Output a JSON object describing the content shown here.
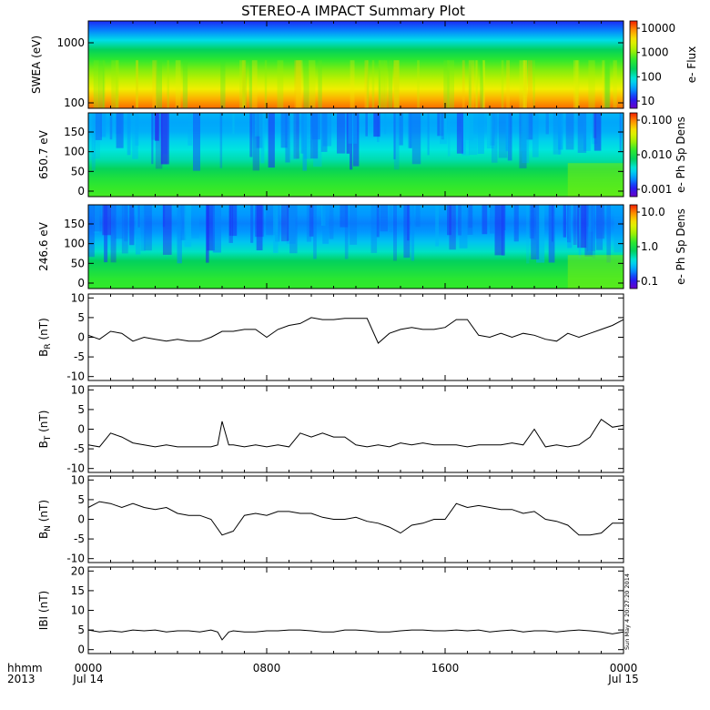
{
  "title": "STEREO-A IMPACT Summary Plot",
  "footer": {
    "left_label_1": "hhmm",
    "left_label_2": "2013",
    "x_ticks": [
      {
        "time": "0000",
        "date": "Jul 14",
        "hour": 0
      },
      {
        "time": "0800",
        "date": "",
        "hour": 8
      },
      {
        "time": "1600",
        "date": "",
        "hour": 16
      },
      {
        "time": "0000",
        "date": "Jul 15",
        "hour": 24
      }
    ],
    "stamp": "Sun May  4 20:27:20 2014"
  },
  "colors": {
    "line": "#000000",
    "colormap": [
      "#6a00c8",
      "#1f1ff5",
      "#009bff",
      "#00e6e6",
      "#00d060",
      "#2de82d",
      "#a8f000",
      "#f0f000",
      "#ff9b00",
      "#f21d00"
    ]
  },
  "chart_data": [
    {
      "type": "heatmap",
      "panel": "swea",
      "ylabel": "SWEA (eV)",
      "y_ticks": [
        "1000",
        "100"
      ],
      "y_scale": "log",
      "ylim": [
        80,
        2000
      ],
      "colorbar": {
        "label": "e- Flux",
        "ticks": [
          "10000",
          "1000",
          "100",
          "10"
        ],
        "scale": "log"
      },
      "description_profile": [
        0.08,
        0.15,
        0.32,
        0.5,
        0.62,
        0.72,
        0.82,
        0.9,
        0.96
      ]
    },
    {
      "type": "heatmap",
      "panel": "pad_650",
      "ylabel": "650.7 eV",
      "y_ticks": [
        "150",
        "100",
        "50",
        "0"
      ],
      "ylim": [
        0,
        180
      ],
      "colorbar": {
        "label": "e- Ph Sp Dens",
        "ticks": [
          "0.100",
          "0.010",
          "0.001"
        ],
        "scale": "log"
      }
    },
    {
      "type": "heatmap",
      "panel": "pad_246",
      "ylabel": "246.6 eV",
      "y_ticks": [
        "150",
        "100",
        "50",
        "0"
      ],
      "ylim": [
        0,
        180
      ],
      "colorbar": {
        "label": "e- Ph Sp Dens",
        "ticks": [
          "10.0",
          "1.0",
          "0.1"
        ],
        "scale": "log"
      }
    },
    {
      "type": "line",
      "panel": "br",
      "ylabel": "B",
      "ylabel_sub": "R",
      "ylabel_unit": "(nT)",
      "y_ticks": [
        "10",
        "5",
        "0",
        "-5",
        "-10"
      ],
      "ylim": [
        -11,
        11
      ],
      "x": [
        0,
        0.5,
        1,
        1.5,
        2,
        2.5,
        3,
        3.5,
        4,
        4.5,
        5,
        5.5,
        6,
        6.5,
        7,
        7.5,
        8,
        8.5,
        9,
        9.5,
        10,
        10.5,
        11,
        11.5,
        12,
        12.5,
        13,
        13.5,
        14,
        14.5,
        15,
        15.5,
        16,
        16.5,
        17,
        17.5,
        18,
        18.5,
        19,
        19.5,
        20,
        20.5,
        21,
        21.5,
        22,
        22.5,
        23,
        23.5,
        24
      ],
      "y": [
        0.5,
        -0.5,
        1.5,
        1,
        -1,
        0,
        -0.5,
        -1,
        -0.5,
        -1,
        -1,
        0,
        1.5,
        1.5,
        2,
        2,
        0,
        2,
        3,
        3.5,
        5,
        4.5,
        4.5,
        4.8,
        4.8,
        4.8,
        -1.5,
        1,
        2,
        2.5,
        2,
        2,
        2.5,
        4.5,
        4.5,
        0.5,
        0,
        1,
        0,
        1,
        0.5,
        -0.5,
        -1,
        1,
        0,
        1,
        2,
        3,
        4.5
      ]
    },
    {
      "type": "line",
      "panel": "bt",
      "ylabel": "B",
      "ylabel_sub": "T",
      "ylabel_unit": "(nT)",
      "y_ticks": [
        "10",
        "5",
        "0",
        "-5",
        "-10"
      ],
      "ylim": [
        -11,
        11
      ],
      "x": [
        0,
        0.5,
        1,
        1.5,
        2,
        2.5,
        3,
        3.5,
        4,
        4.5,
        5,
        5.5,
        5.8,
        6,
        6.3,
        6.5,
        7,
        7.5,
        8,
        8.5,
        9,
        9.5,
        10,
        10.5,
        11,
        11.5,
        12,
        12.5,
        13,
        13.5,
        14,
        14.5,
        15,
        15.5,
        16,
        16.5,
        17,
        17.5,
        18,
        18.5,
        19,
        19.5,
        20,
        20.5,
        21,
        21.5,
        22,
        22.5,
        23,
        23.5,
        24
      ],
      "y": [
        -4,
        -4.5,
        -1,
        -2,
        -3.5,
        -4,
        -4.5,
        -4,
        -4.5,
        -4.5,
        -4.5,
        -4.5,
        -4,
        2,
        -4,
        -4,
        -4.5,
        -4,
        -4.5,
        -4,
        -4.5,
        -1,
        -2,
        -1,
        -2,
        -2,
        -4,
        -4.5,
        -4,
        -4.5,
        -3.5,
        -4,
        -3.5,
        -4,
        -4,
        -4,
        -4.5,
        -4,
        -4,
        -4,
        -3.5,
        -4,
        0,
        -4.5,
        -4,
        -4.5,
        -4,
        -2,
        2.5,
        0.5,
        1
      ]
    },
    {
      "type": "line",
      "panel": "bn",
      "ylabel": "B",
      "ylabel_sub": "N",
      "ylabel_unit": "(nT)",
      "y_ticks": [
        "10",
        "5",
        "0",
        "-5",
        "-10"
      ],
      "ylim": [
        -11,
        11
      ],
      "x": [
        0,
        0.5,
        1,
        1.5,
        2,
        2.5,
        3,
        3.5,
        4,
        4.5,
        5,
        5.5,
        6,
        6.5,
        7,
        7.5,
        8,
        8.5,
        9,
        9.5,
        10,
        10.5,
        11,
        11.5,
        12,
        12.5,
        13,
        13.5,
        14,
        14.5,
        15,
        15.5,
        16,
        16.5,
        17,
        17.5,
        18,
        18.5,
        19,
        19.5,
        20,
        20.5,
        21,
        21.5,
        22,
        22.5,
        23,
        23.5,
        24
      ],
      "y": [
        3,
        4.5,
        4,
        3,
        4,
        3,
        2.5,
        3,
        1.5,
        1,
        1,
        0,
        -4,
        -3,
        1,
        1.5,
        1,
        2,
        2,
        1.5,
        1.5,
        0.5,
        0,
        0,
        0.5,
        -0.5,
        -1,
        -2,
        -3.5,
        -1.5,
        -1,
        0,
        0,
        4,
        3,
        3.5,
        3,
        2.5,
        2.5,
        1.5,
        2,
        0,
        -0.5,
        -1.5,
        -4,
        -4,
        -3.5,
        -1,
        -1
      ]
    },
    {
      "type": "line",
      "panel": "bmag",
      "ylabel": "IBI",
      "ylabel_unit": "(nT)",
      "y_ticks": [
        "20",
        "15",
        "10",
        "5",
        "0"
      ],
      "ylim": [
        -1,
        21
      ],
      "x": [
        0,
        0.5,
        1,
        1.5,
        2,
        2.5,
        3,
        3.5,
        4,
        4.5,
        5,
        5.5,
        5.8,
        6,
        6.3,
        6.5,
        7,
        7.5,
        8,
        8.5,
        9,
        9.5,
        10,
        10.5,
        11,
        11.5,
        12,
        12.5,
        13,
        13.5,
        14,
        14.5,
        15,
        15.5,
        16,
        16.5,
        17,
        17.5,
        18,
        18.5,
        19,
        19.5,
        20,
        20.5,
        21,
        21.5,
        22,
        22.5,
        23,
        23.5,
        24
      ],
      "y": [
        5,
        4.5,
        4.8,
        4.5,
        5,
        4.8,
        5,
        4.5,
        4.8,
        4.8,
        4.5,
        5,
        4.5,
        2.5,
        4.5,
        4.8,
        4.5,
        4.5,
        4.8,
        4.8,
        5,
        5,
        4.8,
        4.5,
        4.5,
        5,
        5,
        4.8,
        4.5,
        4.5,
        4.8,
        5,
        5,
        4.8,
        4.8,
        5,
        4.8,
        5,
        4.5,
        4.8,
        5,
        4.5,
        4.8,
        4.8,
        4.5,
        4.8,
        5,
        4.8,
        4.5,
        4,
        4.5
      ]
    }
  ]
}
